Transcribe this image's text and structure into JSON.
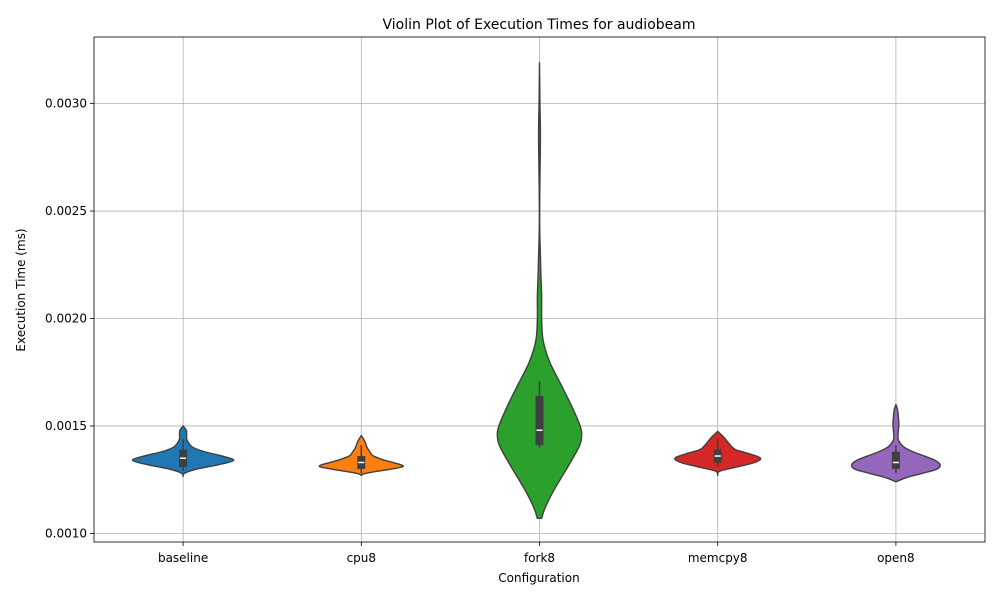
{
  "chart_data": {
    "type": "violin",
    "title": "Violin Plot of Execution Times for audiobeam",
    "xlabel": "Configuration",
    "ylabel": "Execution Time (ms)",
    "ylim": [
      0.00096,
      0.00331
    ],
    "yticks": [
      0.001,
      0.0015,
      0.002,
      0.0025,
      0.003
    ],
    "ytick_labels": [
      "0.0010",
      "0.0015",
      "0.0020",
      "0.0025",
      "0.0030"
    ],
    "grid": true,
    "categories": [
      "baseline",
      "cpu8",
      "fork8",
      "memcpy8",
      "open8"
    ],
    "series": [
      {
        "category": "baseline",
        "color": "#1f77b4",
        "q1": 0.00131,
        "median": 0.00135,
        "q3": 0.00139,
        "whisker_low": 0.00129,
        "whisker_high": 0.00144,
        "profile": [
          [
            0.001265,
            0.0
          ],
          [
            0.00128,
            0.02
          ],
          [
            0.0013,
            0.2
          ],
          [
            0.00132,
            0.5
          ],
          [
            0.00134,
            0.71
          ],
          [
            0.00136,
            0.55
          ],
          [
            0.00138,
            0.3
          ],
          [
            0.0014,
            0.14
          ],
          [
            0.00142,
            0.08
          ],
          [
            0.00144,
            0.05
          ],
          [
            0.00146,
            0.05
          ],
          [
            0.00148,
            0.045
          ],
          [
            0.0015,
            0.0
          ]
        ]
      },
      {
        "category": "cpu8",
        "color": "#ff7f0e",
        "q1": 0.0013,
        "median": 0.00133,
        "q3": 0.00136,
        "whisker_low": 0.00128,
        "whisker_high": 0.00141,
        "profile": [
          [
            0.00127,
            0.0
          ],
          [
            0.00128,
            0.07
          ],
          [
            0.0013,
            0.43
          ],
          [
            0.00131,
            0.58
          ],
          [
            0.00132,
            0.55
          ],
          [
            0.00134,
            0.33
          ],
          [
            0.00136,
            0.17
          ],
          [
            0.00138,
            0.12
          ],
          [
            0.0014,
            0.08
          ],
          [
            0.00142,
            0.06
          ],
          [
            0.00144,
            0.03
          ],
          [
            0.001455,
            0.0
          ]
        ]
      },
      {
        "category": "fork8",
        "color": "#2ca02c",
        "q1": 0.00141,
        "median": 0.00148,
        "q3": 0.00164,
        "whisker_low": 0.0014,
        "whisker_high": 0.00171,
        "profile": [
          [
            0.00107,
            0.03
          ],
          [
            0.00112,
            0.08
          ],
          [
            0.0012,
            0.2
          ],
          [
            0.0013,
            0.38
          ],
          [
            0.0014,
            0.55
          ],
          [
            0.00145,
            0.59
          ],
          [
            0.0015,
            0.57
          ],
          [
            0.0016,
            0.44
          ],
          [
            0.0017,
            0.29
          ],
          [
            0.0018,
            0.14
          ],
          [
            0.0019,
            0.05
          ],
          [
            0.002,
            0.03
          ],
          [
            0.0021,
            0.03
          ],
          [
            0.0022,
            0.02
          ],
          [
            0.0023,
            0.012
          ],
          [
            0.0024,
            0.004
          ],
          [
            0.0025,
            0.002
          ],
          [
            0.0026,
            0.004
          ],
          [
            0.0027,
            0.008
          ],
          [
            0.0028,
            0.012
          ],
          [
            0.0029,
            0.012
          ],
          [
            0.003,
            0.006
          ],
          [
            0.0031,
            0.003
          ],
          [
            0.00319,
            0.0
          ]
        ]
      },
      {
        "category": "memcpy8",
        "color": "#d62728",
        "q1": 0.00133,
        "median": 0.00136,
        "q3": 0.00139,
        "whisker_low": 0.00131,
        "whisker_high": 0.00144,
        "profile": [
          [
            0.00127,
            0.0
          ],
          [
            0.00129,
            0.03
          ],
          [
            0.00131,
            0.28
          ],
          [
            0.00133,
            0.52
          ],
          [
            0.00135,
            0.6
          ],
          [
            0.00137,
            0.45
          ],
          [
            0.00139,
            0.25
          ],
          [
            0.00141,
            0.18
          ],
          [
            0.00143,
            0.13
          ],
          [
            0.00145,
            0.08
          ],
          [
            0.001475,
            0.0
          ]
        ]
      },
      {
        "category": "open8",
        "color": "#9467bd",
        "q1": 0.0013,
        "median": 0.00133,
        "q3": 0.00138,
        "whisker_low": 0.00128,
        "whisker_high": 0.00141,
        "profile": [
          [
            0.00124,
            0.0
          ],
          [
            0.00126,
            0.15
          ],
          [
            0.00128,
            0.38
          ],
          [
            0.0013,
            0.58
          ],
          [
            0.00132,
            0.62
          ],
          [
            0.00134,
            0.55
          ],
          [
            0.00136,
            0.4
          ],
          [
            0.00138,
            0.24
          ],
          [
            0.0014,
            0.12
          ],
          [
            0.00142,
            0.06
          ],
          [
            0.00144,
            0.03
          ],
          [
            0.00146,
            0.03
          ],
          [
            0.00148,
            0.035
          ],
          [
            0.0015,
            0.04
          ],
          [
            0.00152,
            0.04
          ],
          [
            0.00154,
            0.035
          ],
          [
            0.00156,
            0.03
          ],
          [
            0.00158,
            0.02
          ],
          [
            0.0016,
            0.0
          ]
        ]
      }
    ]
  }
}
